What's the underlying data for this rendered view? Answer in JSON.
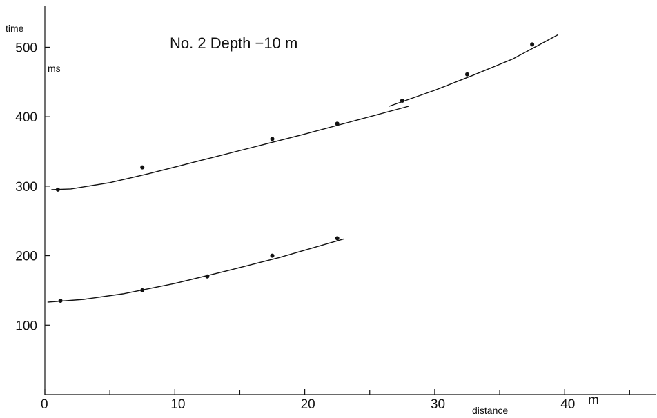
{
  "chart_data": {
    "type": "scatter",
    "title": "No. 2   Depth   −10 m",
    "xlabel": "distance",
    "ylabel": "time",
    "yunit": "ms",
    "xunit": "m",
    "xlim": [
      0,
      47
    ],
    "ylim": [
      0,
      560
    ],
    "xticks": [
      0,
      10,
      20,
      30,
      40
    ],
    "xtick_labels": [
      "0",
      "10",
      "20",
      "30",
      "40"
    ],
    "xminor": [
      5,
      15,
      25,
      35,
      45
    ],
    "yticks": [
      100,
      200,
      300,
      400,
      500
    ],
    "ytick_labels": [
      "100",
      "200",
      "300",
      "400",
      "500"
    ],
    "grid": false,
    "series": [
      {
        "points": {
          "x": [
            1,
            7.5,
            17.5,
            22.5,
            27.5,
            32.5,
            37.5
          ],
          "y": [
            295,
            327,
            368,
            390,
            423,
            461,
            504
          ]
        },
        "fit_lines": [
          {
            "x": [
              0.5,
              2,
              5,
              8,
              12,
              16,
              20,
              24,
              28
            ],
            "y": [
              295,
              296,
              305,
              318,
              337,
              356,
              375,
              395,
              415
            ]
          },
          {
            "x": [
              26.5,
              30,
              33,
              36,
              39.5
            ],
            "y": [
              415,
              438,
              460,
              483,
              518
            ]
          }
        ]
      },
      {
        "points": {
          "x": [
            1.2,
            7.5,
            12.5,
            17.5,
            22.5
          ],
          "y": [
            135,
            150,
            170,
            200,
            225
          ]
        },
        "fit_lines": [
          {
            "x": [
              0.2,
              3,
              6,
              10,
              14,
              18,
              23
            ],
            "y": [
              133,
              137,
              145,
              160,
              178,
              197,
              224
            ]
          }
        ]
      }
    ]
  }
}
